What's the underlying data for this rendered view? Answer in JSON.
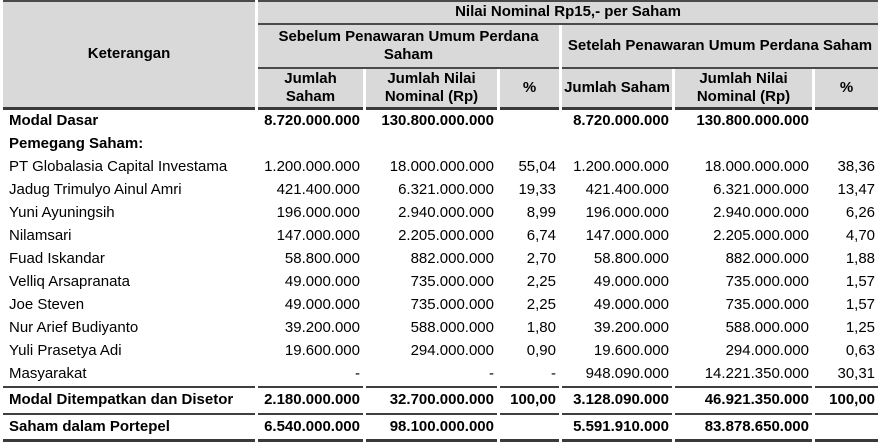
{
  "colors": {
    "header_bg": "#d9d9d9",
    "rule": "#3f3f3f",
    "text": "#000000"
  },
  "table": {
    "nominal_title": "Nilai Nominal Rp15,- per Saham",
    "keterangan": "Keterangan",
    "groups": {
      "before": "Sebelum Penawaran Umum Perdana Saham",
      "after": "Setelah Penawaran Umum Perdana Saham"
    },
    "columns": {
      "jumlah_saham": "Jumlah Saham",
      "jumlah_nominal": "Jumlah Nilai Nominal (Rp)",
      "pct": "%"
    },
    "rows": [
      {
        "label": "Modal Dasar",
        "bold": true,
        "cells": [
          "8.720.000.000",
          "130.800.000.000",
          "",
          "8.720.000.000",
          "130.800.000.000",
          ""
        ]
      },
      {
        "label": "Pemegang Saham:",
        "bold": true,
        "cells": [
          "",
          "",
          "",
          "",
          "",
          ""
        ]
      },
      {
        "label": "PT Globalasia Capital Investama",
        "bold": false,
        "cells": [
          "1.200.000.000",
          "18.000.000.000",
          "55,04",
          "1.200.000.000",
          "18.000.000.000",
          "38,36"
        ]
      },
      {
        "label": "Jadug Trimulyo Ainul Amri",
        "bold": false,
        "cells": [
          "421.400.000",
          "6.321.000.000",
          "19,33",
          "421.400.000",
          "6.321.000.000",
          "13,47"
        ]
      },
      {
        "label": "Yuni Ayuningsih",
        "bold": false,
        "cells": [
          "196.000.000",
          "2.940.000.000",
          "8,99",
          "196.000.000",
          "2.940.000.000",
          "6,26"
        ]
      },
      {
        "label": "Nilamsari",
        "bold": false,
        "cells": [
          "147.000.000",
          "2.205.000.000",
          "6,74",
          "147.000.000",
          "2.205.000.000",
          "4,70"
        ]
      },
      {
        "label": "Fuad Iskandar",
        "bold": false,
        "cells": [
          "58.800.000",
          "882.000.000",
          "2,70",
          "58.800.000",
          "882.000.000",
          "1,88"
        ]
      },
      {
        "label": "Velliq Arsapranata",
        "bold": false,
        "cells": [
          "49.000.000",
          "735.000.000",
          "2,25",
          "49.000.000",
          "735.000.000",
          "1,57"
        ]
      },
      {
        "label": "Joe Steven",
        "bold": false,
        "cells": [
          "49.000.000",
          "735.000.000",
          "2,25",
          "49.000.000",
          "735.000.000",
          "1,57"
        ]
      },
      {
        "label": "Nur Arief Budiyanto",
        "bold": false,
        "cells": [
          "39.200.000",
          "588.000.000",
          "1,80",
          "39.200.000",
          "588.000.000",
          "1,25"
        ]
      },
      {
        "label": "Yuli Prasetya Adi",
        "bold": false,
        "cells": [
          "19.600.000",
          "294.000.000",
          "0,90",
          "19.600.000",
          "294.000.000",
          "0,63"
        ]
      },
      {
        "label": "Masyarakat",
        "bold": false,
        "cells": [
          "-",
          "-",
          "-",
          "948.090.000",
          "14.221.350.000",
          "30,31"
        ]
      },
      {
        "label": "Modal Ditempatkan dan Disetor",
        "bold": true,
        "rule_above": true,
        "rule_below": "thin",
        "cells": [
          "2.180.000.000",
          "32.700.000.000",
          "100,00",
          "3.128.090.000",
          "46.921.350.000",
          "100,00"
        ]
      },
      {
        "label": "Saham dalam Portepel",
        "bold": true,
        "rule_below": "thick",
        "cells": [
          "6.540.000.000",
          "98.100.000.000",
          "",
          "5.591.910.000",
          "83.878.650.000",
          ""
        ]
      }
    ]
  }
}
